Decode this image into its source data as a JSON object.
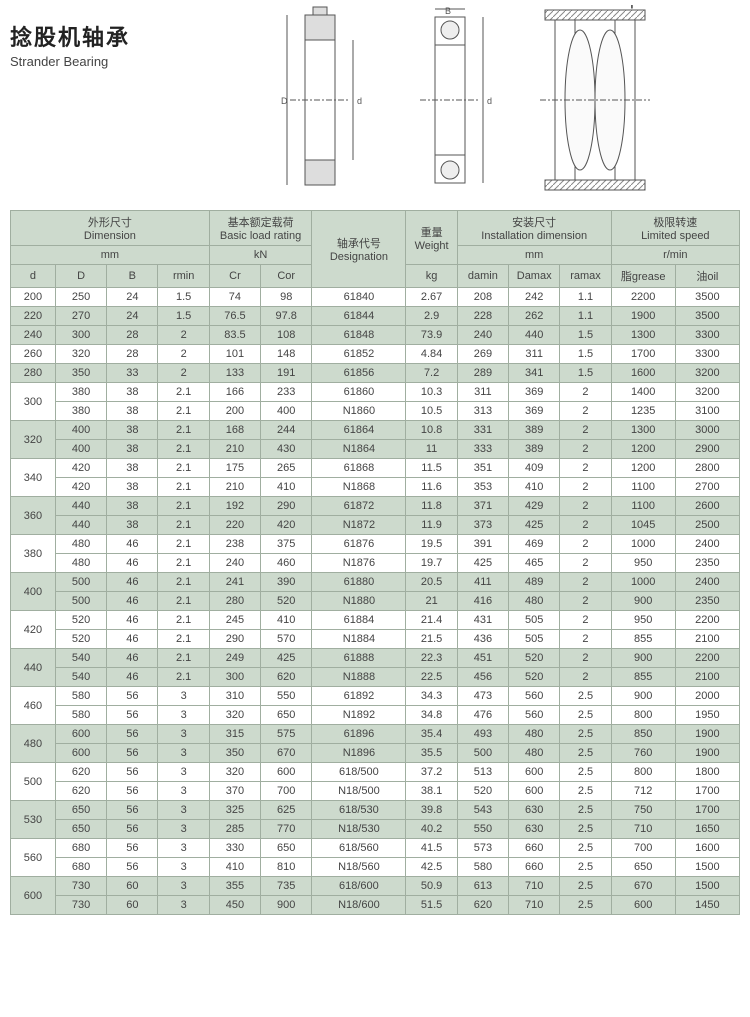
{
  "title": {
    "cn": "捻股机轴承",
    "en": "Strander Bearing"
  },
  "group_headers": {
    "dimension_cn": "外形尺寸",
    "dimension_en": "Dimension",
    "load_cn": "基本额定载荷",
    "load_en": "Basic load rating",
    "designation_cn": "轴承代号",
    "designation_en": "Designation",
    "weight_cn": "重量",
    "weight_en": "Weight",
    "install_cn": "安装尺寸",
    "install_en": "Installation dimension",
    "speed_cn": "极限转速",
    "speed_en": "Limited speed"
  },
  "unit_headers": {
    "mm": "mm",
    "kN": "kN",
    "kg": "kg",
    "rmin": "r/min"
  },
  "col_headers": {
    "d": "d",
    "D": "D",
    "B": "B",
    "rmin": "rmin",
    "Cr": "Cr",
    "Cor": "Cor",
    "damin": "damin",
    "Damax": "Damax",
    "ramax": "ramax",
    "grease": "脂grease",
    "oil": "油oil"
  },
  "colors": {
    "header_bg": "#cddacd",
    "border": "#a0aea0",
    "text": "#444444",
    "bg": "#ffffff"
  },
  "rows": [
    {
      "shade": 0,
      "d": "200",
      "D": "250",
      "B": "24",
      "rmin": "1.5",
      "Cr": "74",
      "Cor": "98",
      "des": "61840",
      "kg": "2.67",
      "damin": "208",
      "Damax": "242",
      "ramax": "1.1",
      "gr": "2200",
      "oil": "3500"
    },
    {
      "shade": 1,
      "d": "220",
      "D": "270",
      "B": "24",
      "rmin": "1.5",
      "Cr": "76.5",
      "Cor": "97.8",
      "des": "61844",
      "kg": "2.9",
      "damin": "228",
      "Damax": "262",
      "ramax": "1.1",
      "gr": "1900",
      "oil": "3500"
    },
    {
      "shade": 1,
      "d": "240",
      "D": "300",
      "B": "28",
      "rmin": "2",
      "Cr": "83.5",
      "Cor": "108",
      "des": "61848",
      "kg": "73.9",
      "damin": "240",
      "Damax": "440",
      "ramax": "1.5",
      "gr": "1300",
      "oil": "3300"
    },
    {
      "shade": 0,
      "d": "260",
      "D": "320",
      "B": "28",
      "rmin": "2",
      "Cr": "101",
      "Cor": "148",
      "des": "61852",
      "kg": "4.84",
      "damin": "269",
      "Damax": "311",
      "ramax": "1.5",
      "gr": "1700",
      "oil": "3300"
    },
    {
      "shade": 1,
      "d": "280",
      "D": "350",
      "B": "33",
      "rmin": "2",
      "Cr": "133",
      "Cor": "191",
      "des": "61856",
      "kg": "7.2",
      "damin": "289",
      "Damax": "341",
      "ramax": "1.5",
      "gr": "1600",
      "oil": "3200"
    },
    {
      "shade": 0,
      "d": "300",
      "span": 2,
      "D": "380",
      "B": "38",
      "rmin": "2.1",
      "Cr": "166",
      "Cor": "233",
      "des": "61860",
      "kg": "10.3",
      "damin": "311",
      "Damax": "369",
      "ramax": "2",
      "gr": "1400",
      "oil": "3200"
    },
    {
      "shade": 0,
      "skip_d": true,
      "D": "380",
      "B": "38",
      "rmin": "2.1",
      "Cr": "200",
      "Cor": "400",
      "des": "N1860",
      "kg": "10.5",
      "damin": "313",
      "Damax": "369",
      "ramax": "2",
      "gr": "1235",
      "oil": "3100"
    },
    {
      "shade": 1,
      "d": "320",
      "span": 2,
      "D": "400",
      "B": "38",
      "rmin": "2.1",
      "Cr": "168",
      "Cor": "244",
      "des": "61864",
      "kg": "10.8",
      "damin": "331",
      "Damax": "389",
      "ramax": "2",
      "gr": "1300",
      "oil": "3000"
    },
    {
      "shade": 1,
      "skip_d": true,
      "D": "400",
      "B": "38",
      "rmin": "2.1",
      "Cr": "210",
      "Cor": "430",
      "des": "N1864",
      "kg": "11",
      "damin": "333",
      "Damax": "389",
      "ramax": "2",
      "gr": "1200",
      "oil": "2900"
    },
    {
      "shade": 0,
      "d": "340",
      "span": 2,
      "D": "420",
      "B": "38",
      "rmin": "2.1",
      "Cr": "175",
      "Cor": "265",
      "des": "61868",
      "kg": "11.5",
      "damin": "351",
      "Damax": "409",
      "ramax": "2",
      "gr": "1200",
      "oil": "2800"
    },
    {
      "shade": 0,
      "skip_d": true,
      "D": "420",
      "B": "38",
      "rmin": "2.1",
      "Cr": "210",
      "Cor": "410",
      "des": "N1868",
      "kg": "11.6",
      "damin": "353",
      "Damax": "410",
      "ramax": "2",
      "gr": "1100",
      "oil": "2700"
    },
    {
      "shade": 1,
      "d": "360",
      "span": 2,
      "D": "440",
      "B": "38",
      "rmin": "2.1",
      "Cr": "192",
      "Cor": "290",
      "des": "61872",
      "kg": "11.8",
      "damin": "371",
      "Damax": "429",
      "ramax": "2",
      "gr": "1100",
      "oil": "2600"
    },
    {
      "shade": 1,
      "skip_d": true,
      "D": "440",
      "B": "38",
      "rmin": "2.1",
      "Cr": "220",
      "Cor": "420",
      "des": "N1872",
      "kg": "11.9",
      "damin": "373",
      "Damax": "425",
      "ramax": "2",
      "gr": "1045",
      "oil": "2500"
    },
    {
      "shade": 0,
      "d": "380",
      "span": 2,
      "D": "480",
      "B": "46",
      "rmin": "2.1",
      "Cr": "238",
      "Cor": "375",
      "des": "61876",
      "kg": "19.5",
      "damin": "391",
      "Damax": "469",
      "ramax": "2",
      "gr": "1000",
      "oil": "2400"
    },
    {
      "shade": 0,
      "skip_d": true,
      "D": "480",
      "B": "46",
      "rmin": "2.1",
      "Cr": "240",
      "Cor": "460",
      "des": "N1876",
      "kg": "19.7",
      "damin": "425",
      "Damax": "465",
      "ramax": "2",
      "gr": "950",
      "oil": "2350"
    },
    {
      "shade": 1,
      "d": "400",
      "span": 2,
      "D": "500",
      "B": "46",
      "rmin": "2.1",
      "Cr": "241",
      "Cor": "390",
      "des": "61880",
      "kg": "20.5",
      "damin": "411",
      "Damax": "489",
      "ramax": "2",
      "gr": "1000",
      "oil": "2400"
    },
    {
      "shade": 1,
      "skip_d": true,
      "D": "500",
      "B": "46",
      "rmin": "2.1",
      "Cr": "280",
      "Cor": "520",
      "des": "N1880",
      "kg": "21",
      "damin": "416",
      "Damax": "480",
      "ramax": "2",
      "gr": "900",
      "oil": "2350"
    },
    {
      "shade": 0,
      "d": "420",
      "span": 2,
      "D": "520",
      "B": "46",
      "rmin": "2.1",
      "Cr": "245",
      "Cor": "410",
      "des": "61884",
      "kg": "21.4",
      "damin": "431",
      "Damax": "505",
      "ramax": "2",
      "gr": "950",
      "oil": "2200"
    },
    {
      "shade": 0,
      "skip_d": true,
      "D": "520",
      "B": "46",
      "rmin": "2.1",
      "Cr": "290",
      "Cor": "570",
      "des": "N1884",
      "kg": "21.5",
      "damin": "436",
      "Damax": "505",
      "ramax": "2",
      "gr": "855",
      "oil": "2100"
    },
    {
      "shade": 1,
      "d": "440",
      "span": 2,
      "D": "540",
      "B": "46",
      "rmin": "2.1",
      "Cr": "249",
      "Cor": "425",
      "des": "61888",
      "kg": "22.3",
      "damin": "451",
      "Damax": "520",
      "ramax": "2",
      "gr": "900",
      "oil": "2200"
    },
    {
      "shade": 1,
      "skip_d": true,
      "D": "540",
      "B": "46",
      "rmin": "2.1",
      "Cr": "300",
      "Cor": "620",
      "des": "N1888",
      "kg": "22.5",
      "damin": "456",
      "Damax": "520",
      "ramax": "2",
      "gr": "855",
      "oil": "2100"
    },
    {
      "shade": 0,
      "d": "460",
      "span": 2,
      "D": "580",
      "B": "56",
      "rmin": "3",
      "Cr": "310",
      "Cor": "550",
      "des": "61892",
      "kg": "34.3",
      "damin": "473",
      "Damax": "560",
      "ramax": "2.5",
      "gr": "900",
      "oil": "2000"
    },
    {
      "shade": 0,
      "skip_d": true,
      "D": "580",
      "B": "56",
      "rmin": "3",
      "Cr": "320",
      "Cor": "650",
      "des": "N1892",
      "kg": "34.8",
      "damin": "476",
      "Damax": "560",
      "ramax": "2.5",
      "gr": "800",
      "oil": "1950"
    },
    {
      "shade": 1,
      "d": "480",
      "span": 2,
      "D": "600",
      "B": "56",
      "rmin": "3",
      "Cr": "315",
      "Cor": "575",
      "des": "61896",
      "kg": "35.4",
      "damin": "493",
      "Damax": "480",
      "ramax": "2.5",
      "gr": "850",
      "oil": "1900"
    },
    {
      "shade": 1,
      "skip_d": true,
      "D": "600",
      "B": "56",
      "rmin": "3",
      "Cr": "350",
      "Cor": "670",
      "des": "N1896",
      "kg": "35.5",
      "damin": "500",
      "Damax": "480",
      "ramax": "2.5",
      "gr": "760",
      "oil": "1900"
    },
    {
      "shade": 0,
      "d": "500",
      "span": 2,
      "D": "620",
      "B": "56",
      "rmin": "3",
      "Cr": "320",
      "Cor": "600",
      "des": "618/500",
      "kg": "37.2",
      "damin": "513",
      "Damax": "600",
      "ramax": "2.5",
      "gr": "800",
      "oil": "1800"
    },
    {
      "shade": 0,
      "skip_d": true,
      "D": "620",
      "B": "56",
      "rmin": "3",
      "Cr": "370",
      "Cor": "700",
      "des": "N18/500",
      "kg": "38.1",
      "damin": "520",
      "Damax": "600",
      "ramax": "2.5",
      "gr": "712",
      "oil": "1700"
    },
    {
      "shade": 1,
      "d": "530",
      "span": 2,
      "D": "650",
      "B": "56",
      "rmin": "3",
      "Cr": "325",
      "Cor": "625",
      "des": "618/530",
      "kg": "39.8",
      "damin": "543",
      "Damax": "630",
      "ramax": "2.5",
      "gr": "750",
      "oil": "1700"
    },
    {
      "shade": 1,
      "skip_d": true,
      "D": "650",
      "B": "56",
      "rmin": "3",
      "Cr": "285",
      "Cor": "770",
      "des": "N18/530",
      "kg": "40.2",
      "damin": "550",
      "Damax": "630",
      "ramax": "2.5",
      "gr": "710",
      "oil": "1650"
    },
    {
      "shade": 0,
      "d": "560",
      "span": 2,
      "D": "680",
      "B": "56",
      "rmin": "3",
      "Cr": "330",
      "Cor": "650",
      "des": "618/560",
      "kg": "41.5",
      "damin": "573",
      "Damax": "660",
      "ramax": "2.5",
      "gr": "700",
      "oil": "1600"
    },
    {
      "shade": 0,
      "skip_d": true,
      "D": "680",
      "B": "56",
      "rmin": "3",
      "Cr": "410",
      "Cor": "810",
      "des": "N18/560",
      "kg": "42.5",
      "damin": "580",
      "Damax": "660",
      "ramax": "2.5",
      "gr": "650",
      "oil": "1500"
    },
    {
      "shade": 1,
      "d": "600",
      "span": 2,
      "D": "730",
      "B": "60",
      "rmin": "3",
      "Cr": "355",
      "Cor": "735",
      "des": "618/600",
      "kg": "50.9",
      "damin": "613",
      "Damax": "710",
      "ramax": "2.5",
      "gr": "670",
      "oil": "1500"
    },
    {
      "shade": 1,
      "skip_d": true,
      "D": "730",
      "B": "60",
      "rmin": "3",
      "Cr": "450",
      "Cor": "900",
      "des": "N18/600",
      "kg": "51.5",
      "damin": "620",
      "Damax": "710",
      "ramax": "2.5",
      "gr": "600",
      "oil": "1450"
    }
  ]
}
